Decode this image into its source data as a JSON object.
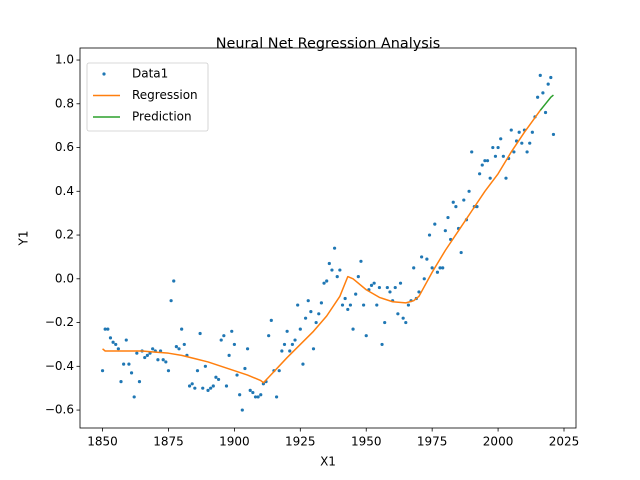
{
  "chart_data": {
    "type": "scatter",
    "title": "Neural Net Regression Analysis",
    "x_label": "X1",
    "y_label": "Y1",
    "xlim": [
      1841.45,
      2029.55
    ],
    "ylim": [
      -0.682,
      1.055
    ],
    "xticks": [
      1850,
      1875,
      1900,
      1925,
      1950,
      1975,
      2000,
      2025
    ],
    "yticks": [
      {
        "value": -0.6,
        "label": "−0.6"
      },
      {
        "value": -0.4,
        "label": "−0.4"
      },
      {
        "value": -0.2,
        "label": "−0.2"
      },
      {
        "value": 0,
        "label": "0.0"
      },
      0.2,
      0.4,
      0.6,
      0.8,
      {
        "value": 1,
        "label": "1.0"
      }
    ],
    "legend": "upper left",
    "series": [
      {
        "name": "Data1",
        "type": "scatter",
        "color": "#1f77b4",
        "x": [
          1850,
          1851,
          1852,
          1853,
          1854,
          1855,
          1856,
          1857,
          1858,
          1859,
          1860,
          1861,
          1862,
          1863,
          1864,
          1865,
          1866,
          1867,
          1868,
          1869,
          1870,
          1871,
          1872,
          1873,
          1874,
          1875,
          1876,
          1877,
          1878,
          1879,
          1880,
          1881,
          1882,
          1883,
          1884,
          1885,
          1886,
          1887,
          1888,
          1889,
          1890,
          1891,
          1892,
          1893,
          1894,
          1895,
          1896,
          1897,
          1898,
          1899,
          1900,
          1901,
          1902,
          1903,
          1904,
          1905,
          1906,
          1907,
          1908,
          1909,
          1910,
          1911,
          1912,
          1913,
          1914,
          1915,
          1916,
          1917,
          1918,
          1919,
          1920,
          1921,
          1922,
          1923,
          1924,
          1925,
          1926,
          1927,
          1928,
          1929,
          1930,
          1931,
          1932,
          1933,
          1934,
          1935,
          1936,
          1937,
          1938,
          1939,
          1940,
          1941,
          1942,
          1943,
          1944,
          1945,
          1946,
          1947,
          1948,
          1949,
          1950,
          1951,
          1952,
          1953,
          1954,
          1955,
          1956,
          1957,
          1958,
          1959,
          1960,
          1961,
          1962,
          1963,
          1964,
          1965,
          1966,
          1967,
          1968,
          1969,
          1970,
          1971,
          1972,
          1973,
          1974,
          1975,
          1976,
          1977,
          1978,
          1979,
          1980,
          1981,
          1982,
          1983,
          1984,
          1985,
          1986,
          1987,
          1988,
          1989,
          1990,
          1991,
          1992,
          1993,
          1994,
          1995,
          1996,
          1997,
          1998,
          1999,
          2000,
          2001,
          2002,
          2003,
          2004,
          2005,
          2006,
          2007,
          2008,
          2009,
          2010,
          2011,
          2012,
          2013,
          2014,
          2015,
          2016,
          2017,
          2018,
          2019,
          2020,
          2021
        ],
        "values": [
          -0.42,
          -0.23,
          -0.23,
          -0.27,
          -0.29,
          -0.3,
          -0.32,
          -0.47,
          -0.39,
          -0.28,
          -0.39,
          -0.43,
          -0.54,
          -0.34,
          -0.47,
          -0.33,
          -0.36,
          -0.35,
          -0.34,
          -0.32,
          -0.33,
          -0.37,
          -0.33,
          -0.37,
          -0.38,
          -0.42,
          -0.1,
          -0.01,
          -0.31,
          -0.32,
          -0.23,
          -0.3,
          -0.35,
          -0.49,
          -0.48,
          -0.5,
          -0.42,
          -0.25,
          -0.5,
          -0.4,
          -0.51,
          -0.5,
          -0.49,
          -0.45,
          -0.46,
          -0.28,
          -0.26,
          -0.49,
          -0.35,
          -0.24,
          -0.3,
          -0.44,
          -0.53,
          -0.6,
          -0.41,
          -0.32,
          -0.51,
          -0.52,
          -0.54,
          -0.54,
          -0.53,
          -0.48,
          -0.47,
          -0.26,
          -0.19,
          -0.42,
          -0.54,
          -0.42,
          -0.33,
          -0.3,
          -0.24,
          -0.33,
          -0.3,
          -0.28,
          -0.12,
          -0.23,
          -0.39,
          -0.18,
          -0.1,
          -0.15,
          -0.32,
          -0.2,
          -0.16,
          -0.11,
          -0.02,
          -0.01,
          0.07,
          0.04,
          0.14,
          0.01,
          0.04,
          -0.12,
          -0.09,
          -0.14,
          -0.12,
          -0.23,
          -0.07,
          0.01,
          0.08,
          -0.12,
          -0.26,
          -0.05,
          -0.03,
          -0.02,
          -0.12,
          -0.04,
          -0.3,
          -0.2,
          -0.04,
          -0.06,
          -0.1,
          -0.04,
          -0.16,
          -0.02,
          -0.18,
          -0.2,
          -0.12,
          -0.1,
          0.05,
          -0.09,
          -0.06,
          0.1,
          0.0,
          0.09,
          0.2,
          0.05,
          0.25,
          0.03,
          0.05,
          0.05,
          0.22,
          0.28,
          0.18,
          0.35,
          0.33,
          0.23,
          0.12,
          0.36,
          0.27,
          0.4,
          0.58,
          0.33,
          0.33,
          0.48,
          0.52,
          0.54,
          0.54,
          0.46,
          0.6,
          0.56,
          0.6,
          0.64,
          0.56,
          0.46,
          0.55,
          0.68,
          0.58,
          0.63,
          0.67,
          0.62,
          0.68,
          0.58,
          0.62,
          0.67,
          0.74,
          0.83,
          0.93,
          0.85,
          0.76,
          0.89,
          0.92,
          0.66
        ]
      },
      {
        "name": "Regression",
        "type": "line",
        "color": "#ff7f0e",
        "x": [
          1850,
          1851,
          1855,
          1860,
          1865,
          1870,
          1875,
          1880,
          1885,
          1890,
          1895,
          1900,
          1905,
          1910,
          1911,
          1913,
          1920,
          1925,
          1930,
          1935,
          1940,
          1943,
          1945,
          1950,
          1955,
          1960,
          1965,
          1968,
          1970,
          1975,
          1980,
          1985,
          1990,
          1995,
          2000,
          2005,
          2010,
          2016
        ],
        "values": [
          -0.32,
          -0.33,
          -0.33,
          -0.33,
          -0.33,
          -0.335,
          -0.34,
          -0.35,
          -0.365,
          -0.38,
          -0.4,
          -0.42,
          -0.44,
          -0.465,
          -0.475,
          -0.45,
          -0.36,
          -0.3,
          -0.24,
          -0.17,
          -0.08,
          0.01,
          0.0,
          -0.05,
          -0.085,
          -0.105,
          -0.11,
          -0.1,
          -0.08,
          0.03,
          0.13,
          0.22,
          0.31,
          0.4,
          0.48,
          0.58,
          0.67,
          0.77
        ]
      },
      {
        "name": "Prediction",
        "type": "line",
        "color": "#2ca02c",
        "x": [
          2016,
          2018,
          2020,
          2021
        ],
        "values": [
          0.77,
          0.8,
          0.83,
          0.84
        ]
      }
    ]
  }
}
